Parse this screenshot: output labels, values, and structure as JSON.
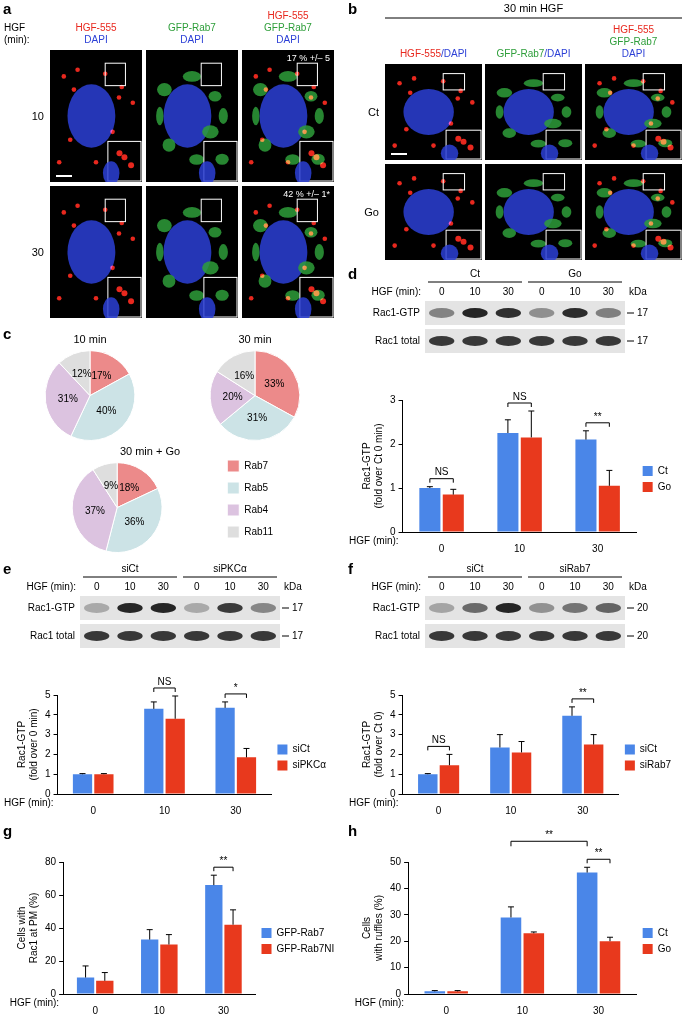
{
  "images": [
    {
      "panel": "a",
      "corner_label": "HGF\n(min):",
      "columns": [
        [
          [
            {
              "text": "HGF-555",
              "color": "#e8281e"
            }
          ],
          [
            {
              "text": "DAPI",
              "color": "#2b3fd6"
            }
          ]
        ],
        [
          [
            {
              "text": "GFP-Rab7",
              "color": "#2e9e3a"
            }
          ],
          [
            {
              "text": "DAPI",
              "color": "#2b3fd6"
            }
          ]
        ],
        [
          [
            {
              "text": "HGF-555",
              "color": "#e8281e"
            }
          ],
          [
            {
              "text": "GFP-Rab7",
              "color": "#2e9e3a"
            }
          ],
          [
            {
              "text": "DAPI",
              "color": "#2b3fd6"
            }
          ]
        ]
      ],
      "rows": [
        {
          "label": "10",
          "note": "17 % +/– 5"
        },
        {
          "label": "30",
          "note": "42 % +/– 1*"
        }
      ]
    },
    {
      "panel": "b",
      "header": "30 min HGF",
      "columns": [
        [
          [
            {
              "text": "HGF-555",
              "color": "#e8281e"
            },
            {
              "text": "/DAPI",
              "color": "#2b3fd6"
            }
          ]
        ],
        [
          [
            {
              "text": "GFP-Rab7",
              "color": "#2e9e3a"
            },
            {
              "text": "/DAPI",
              "color": "#2b3fd6"
            }
          ]
        ],
        [
          [
            {
              "text": "HGF-555",
              "color": "#e8281e"
            }
          ],
          [
            {
              "text": "GFP-Rab7",
              "color": "#2e9e3a"
            }
          ],
          [
            {
              "text": "DAPI",
              "color": "#2b3fd6"
            }
          ]
        ]
      ],
      "rows": [
        {
          "label": "Ct"
        },
        {
          "label": "Go"
        }
      ]
    }
  ],
  "blots": [
    {
      "panel": "d",
      "groups": [
        "Ct",
        "Go"
      ],
      "row_label": "HGF (min):",
      "lanes": [
        "0",
        "10",
        "30",
        "0",
        "10",
        "30"
      ],
      "unit": "kDa",
      "bands": [
        {
          "name": "Rac1-GTP",
          "marker": "17"
        },
        {
          "name": "Rac1 total",
          "marker": "17"
        }
      ]
    },
    {
      "panel": "e",
      "groups": [
        "siCt",
        "siPKCα"
      ],
      "row_label": "HGF (min):",
      "lanes": [
        "0",
        "10",
        "30",
        "0",
        "10",
        "30"
      ],
      "unit": "kDa",
      "bands": [
        {
          "name": "Rac1-GTP",
          "marker": "17"
        },
        {
          "name": "Rac1 total",
          "marker": "17"
        }
      ]
    },
    {
      "panel": "f",
      "groups": [
        "siCt",
        "siRab7"
      ],
      "row_label": "HGF (min):",
      "lanes": [
        "0",
        "10",
        "30",
        "0",
        "10",
        "30"
      ],
      "unit": "kDa",
      "bands": [
        {
          "name": "Rac1-GTP",
          "marker": "20"
        },
        {
          "name": "Rac1 total",
          "marker": "20"
        }
      ]
    }
  ],
  "chart_data": [
    {
      "panel": "c",
      "type": "pie",
      "title": "10 min",
      "categories": [
        "Rab7",
        "Rab5",
        "Rab4",
        "Rab11"
      ],
      "values": [
        17,
        40,
        31,
        12
      ],
      "value_labels": [
        "17%",
        "40%",
        "31%",
        "12%"
      ],
      "colors": [
        "#ec8a8a",
        "#cce3e6",
        "#dcc3e0",
        "#dedede"
      ],
      "data_labels": true
    },
    {
      "panel": "c",
      "type": "pie",
      "title": "30 min",
      "categories": [
        "Rab7",
        "Rab5",
        "Rab4",
        "Rab11"
      ],
      "values": [
        33,
        31,
        20,
        16
      ],
      "value_labels": [
        "33%",
        "31%",
        "20%",
        "16%"
      ],
      "colors": [
        "#ec8a8a",
        "#cce3e6",
        "#dcc3e0",
        "#dedede"
      ],
      "data_labels": true
    },
    {
      "panel": "c",
      "type": "pie",
      "title": "30 min + Go",
      "categories": [
        "Rab7",
        "Rab5",
        "Rab4",
        "Rab11"
      ],
      "values": [
        18,
        36,
        37,
        9
      ],
      "value_labels": [
        "18%",
        "36%",
        "37%",
        "9%"
      ],
      "colors": [
        "#ec8a8a",
        "#cce3e6",
        "#dcc3e0",
        "#dedede"
      ],
      "data_labels": true,
      "legend": "right"
    },
    {
      "panel": "d",
      "type": "bar",
      "categories": [
        "0",
        "10",
        "30"
      ],
      "x_label": "HGF (min):",
      "y_label": "Rac1-GTP\n(fold over Ct 0 min)",
      "ylim": [
        0,
        3
      ],
      "yticks": [
        0,
        1,
        2,
        3
      ],
      "grid": false,
      "legend": "right",
      "series": [
        {
          "name": "Ct",
          "color": "#4a86e8",
          "values": [
            1.0,
            2.25,
            2.1
          ],
          "errors": [
            0.03,
            0.3,
            0.2
          ]
        },
        {
          "name": "Go",
          "color": "#e8391d",
          "values": [
            0.85,
            2.15,
            1.05
          ],
          "errors": [
            0.12,
            0.6,
            0.35
          ]
        }
      ],
      "annotations": [
        {
          "text": "NS",
          "category": "0"
        },
        {
          "text": "NS",
          "category": "10"
        },
        {
          "text": "**",
          "category": "30"
        }
      ]
    },
    {
      "panel": "e",
      "type": "bar",
      "categories": [
        "0",
        "10",
        "30"
      ],
      "x_label": "HGF (min):",
      "y_label": "Rac1-GTP\n(fold over 0 min)",
      "ylim": [
        0,
        5
      ],
      "yticks": [
        0,
        1,
        2,
        3,
        4,
        5
      ],
      "grid": false,
      "legend": "right",
      "series": [
        {
          "name": "siCt",
          "color": "#4a86e8",
          "values": [
            1.0,
            4.3,
            4.35
          ],
          "errors": [
            0.03,
            0.35,
            0.3
          ]
        },
        {
          "name": "siPKCα",
          "color": "#e8391d",
          "values": [
            1.0,
            3.8,
            1.85
          ],
          "errors": [
            0.03,
            1.15,
            0.45
          ]
        }
      ],
      "annotations": [
        {
          "text": "NS",
          "category": "10"
        },
        {
          "text": "*",
          "category": "30"
        }
      ]
    },
    {
      "panel": "f",
      "type": "bar",
      "categories": [
        "0",
        "10",
        "30"
      ],
      "x_label": "HGF (min):",
      "y_label": "Rac1-GTP\n(fold over Ct 0)",
      "ylim": [
        0,
        5
      ],
      "yticks": [
        0,
        1,
        2,
        3,
        4,
        5
      ],
      "grid": false,
      "legend": "right",
      "series": [
        {
          "name": "siCt",
          "color": "#4a86e8",
          "values": [
            1.0,
            2.35,
            3.95
          ],
          "errors": [
            0.03,
            0.65,
            0.45
          ]
        },
        {
          "name": "siRab7",
          "color": "#e8391d",
          "values": [
            1.45,
            2.1,
            2.5
          ],
          "errors": [
            0.55,
            0.55,
            0.5
          ]
        }
      ],
      "annotations": [
        {
          "text": "NS",
          "category": "0"
        },
        {
          "text": "**",
          "category": "30"
        }
      ]
    },
    {
      "panel": "g",
      "type": "bar",
      "categories": [
        "0",
        "10",
        "30"
      ],
      "x_label": "HGF (min):",
      "y_label": "Cells with\nRac1 at PM (%)",
      "ylim": [
        0,
        80
      ],
      "yticks": [
        0,
        20,
        40,
        60,
        80
      ],
      "grid": false,
      "legend": "right",
      "series": [
        {
          "name": "GFP-Rab7",
          "color": "#4a86e8",
          "values": [
            10,
            33,
            66
          ],
          "errors": [
            7,
            6,
            6
          ]
        },
        {
          "name": "GFP-Rab7NI",
          "color": "#e8391d",
          "values": [
            8,
            30,
            42
          ],
          "errors": [
            5,
            6,
            9
          ]
        }
      ],
      "annotations": [
        {
          "text": "**",
          "category": "30"
        }
      ]
    },
    {
      "panel": "h",
      "type": "bar",
      "categories": [
        "0",
        "10",
        "30"
      ],
      "x_label": "HGF (min):",
      "y_label": "Cells\nwith ruffles (%)",
      "ylim": [
        0,
        50
      ],
      "yticks": [
        0,
        10,
        20,
        30,
        40,
        50
      ],
      "grid": false,
      "legend": "right",
      "series": [
        {
          "name": "Ct",
          "color": "#4a86e8",
          "values": [
            1,
            29,
            46
          ],
          "errors": [
            0.3,
            4,
            2
          ]
        },
        {
          "name": "Go",
          "color": "#e8391d",
          "values": [
            1,
            23,
            20
          ],
          "errors": [
            0.3,
            0.5,
            1.5
          ]
        }
      ],
      "annotations": [
        {
          "text": "**",
          "category": [
            "10",
            "30"
          ],
          "series": "Ct"
        },
        {
          "text": "**",
          "category": "30"
        }
      ]
    }
  ]
}
